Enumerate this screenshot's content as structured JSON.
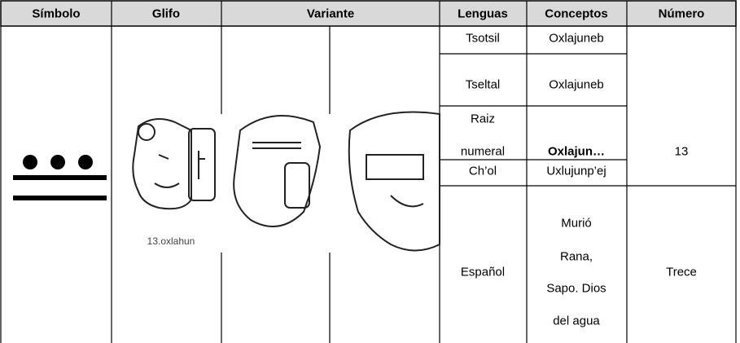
{
  "header": [
    "Símbolo",
    "Glifo",
    "Variante",
    "Lenguas",
    "Conceptos",
    "Número"
  ],
  "glyph_caption": "13.oxlahun",
  "rows": [
    {
      "language": [
        "Tsotsil"
      ],
      "concept": [
        "Oxlajuneb"
      ]
    },
    {
      "language": [
        "Tseltal"
      ],
      "concept": [
        "Oxlajuneb"
      ]
    },
    {
      "language": [
        "Raiz",
        "numeral"
      ],
      "concept": [
        "Oxlajun…"
      ]
    },
    {
      "language": [
        "Ch’ol"
      ],
      "concept": [
        "Uxlujunp’ej"
      ]
    },
    {
      "language": [
        "Español"
      ],
      "concept": [
        "Murió",
        "Rana,",
        "Sapo. Dios",
        "del agua"
      ]
    }
  ],
  "numbers": [
    "13",
    "Trece"
  ]
}
